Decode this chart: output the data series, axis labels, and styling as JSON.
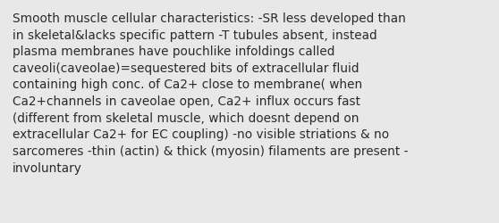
{
  "background_color": "#e8e8e8",
  "text_color": "#2a2a2a",
  "text": "Smooth muscle cellular characteristics: -SR less developed than\nin skeletal&lacks specific pattern -T tubules absent, instead\nplasma membranes have pouchlike infoldings called\ncaveoli(caveolae)=sequestered bits of extracellular fluid\ncontaining high conc. of Ca2+ close to membrane( when\nCa2+channels in caveolae open, Ca2+ influx occurs fast\n(different from skeletal muscle, which doesnt depend on\nextracellular Ca2+ for EC coupling) -no visible striations & no\nsarcomeres -thin (actin) & thick (myosin) filaments are present -\ninvoluntary",
  "font_size": 9.8,
  "fig_width": 5.58,
  "fig_height": 2.51,
  "dpi": 100
}
